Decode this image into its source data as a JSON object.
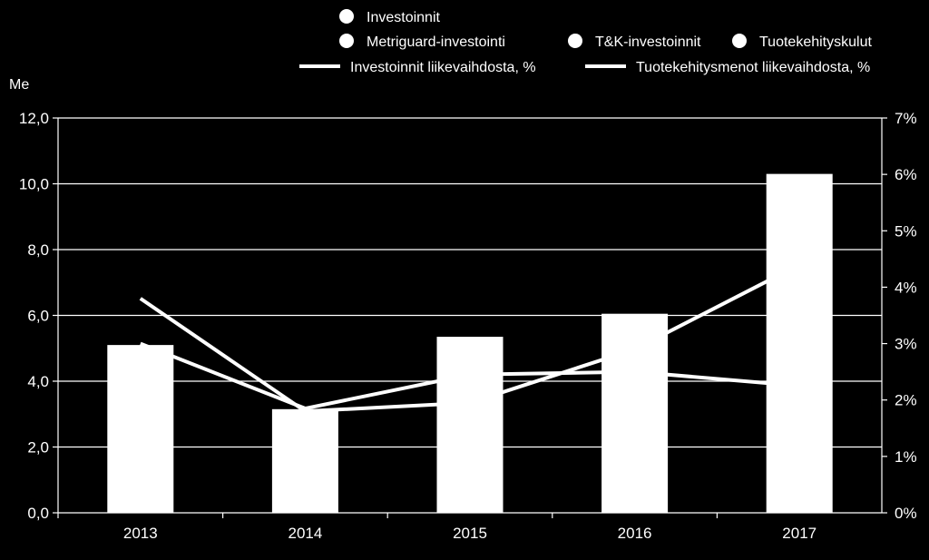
{
  "chart_data": {
    "type": "bar",
    "categories": [
      "2013",
      "2014",
      "2015",
      "2016",
      "2017"
    ],
    "y_unit_label": "Me",
    "ylim": [
      0,
      12
    ],
    "y_ticks": [
      "0,0",
      "2,0",
      "4,0",
      "6,0",
      "8,0",
      "10,0",
      "12,0"
    ],
    "y2lim": [
      0,
      7
    ],
    "y2_ticks": [
      "0%",
      "1%",
      "2%",
      "3%",
      "4%",
      "5%",
      "6%",
      "7%"
    ],
    "grid": true,
    "legend_placement": "top",
    "bar_series": [
      {
        "name": "Investoinnit",
        "values": [
          5.1,
          3.15,
          5.35,
          6.05,
          10.3
        ]
      },
      {
        "name": "Metriguard-investointi",
        "values": [
          0,
          0,
          0,
          0,
          0
        ]
      },
      {
        "name": "T&K-investoinnit",
        "values": [
          0,
          0,
          0,
          0,
          0
        ]
      },
      {
        "name": "Tuotekehityskulut",
        "values": [
          0,
          0,
          0,
          0,
          0
        ]
      }
    ],
    "line_series": [
      {
        "name": "Investoinnit liikevaihdosta, %",
        "axis": "right",
        "values": [
          3.8,
          1.8,
          1.95,
          2.9,
          4.4
        ]
      },
      {
        "name": "Tuotekehitysmenot liikevaihdosta, %",
        "axis": "right",
        "values": [
          3.0,
          1.85,
          2.45,
          2.5,
          2.25
        ]
      }
    ],
    "colors": {
      "background": "#000000",
      "bars": "#ffffff",
      "lines": "#ffffff",
      "grid": "#ffffff",
      "text": "#ffffff"
    }
  }
}
